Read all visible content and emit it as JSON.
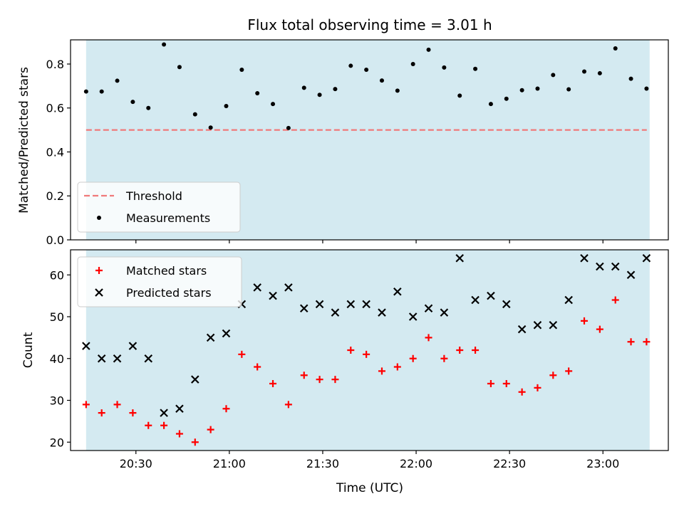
{
  "chart_data": [
    {
      "type": "scatter",
      "title": "Flux total observing time = 3.01 h",
      "xlabel": "",
      "ylabel": "Matched/Predicted stars",
      "xlim": [
        "20:09",
        "23:21"
      ],
      "ylim": [
        0,
        0.91
      ],
      "yticks": [
        0.0,
        0.2,
        0.4,
        0.6,
        0.8
      ],
      "ytick_labels": [
        "0.0",
        "0.2",
        "0.4",
        "0.6",
        "0.8"
      ],
      "shaded_span": [
        "20:14",
        "23:15"
      ],
      "shade_color": "#d4eaf1",
      "grid": false,
      "legend_position": "lower-left",
      "threshold": {
        "name": "Threshold",
        "value": 0.5,
        "style": "dashed",
        "color": "#f07a7a"
      },
      "series": [
        {
          "name": "Measurements",
          "marker": "dot",
          "color": "#000000",
          "points": [
            {
              "x": "20:14",
              "y": 0.675
            },
            {
              "x": "20:19",
              "y": 0.675
            },
            {
              "x": "20:24",
              "y": 0.724
            },
            {
              "x": "20:29",
              "y": 0.628
            },
            {
              "x": "20:34",
              "y": 0.6
            },
            {
              "x": "20:39",
              "y": 0.889
            },
            {
              "x": "20:44",
              "y": 0.786
            },
            {
              "x": "20:49",
              "y": 0.571
            },
            {
              "x": "20:54",
              "y": 0.511
            },
            {
              "x": "20:59",
              "y": 0.609
            },
            {
              "x": "21:04",
              "y": 0.774
            },
            {
              "x": "21:09",
              "y": 0.667
            },
            {
              "x": "21:14",
              "y": 0.618
            },
            {
              "x": "21:19",
              "y": 0.509
            },
            {
              "x": "21:24",
              "y": 0.692
            },
            {
              "x": "21:29",
              "y": 0.66
            },
            {
              "x": "21:34",
              "y": 0.686
            },
            {
              "x": "21:39",
              "y": 0.792
            },
            {
              "x": "21:44",
              "y": 0.774
            },
            {
              "x": "21:49",
              "y": 0.725
            },
            {
              "x": "21:54",
              "y": 0.679
            },
            {
              "x": "21:59",
              "y": 0.8
            },
            {
              "x": "22:04",
              "y": 0.865
            },
            {
              "x": "22:09",
              "y": 0.784
            },
            {
              "x": "22:14",
              "y": 0.656
            },
            {
              "x": "22:19",
              "y": 0.778
            },
            {
              "x": "22:24",
              "y": 0.618
            },
            {
              "x": "22:29",
              "y": 0.642
            },
            {
              "x": "22:34",
              "y": 0.681
            },
            {
              "x": "22:39",
              "y": 0.688
            },
            {
              "x": "22:44",
              "y": 0.75
            },
            {
              "x": "22:49",
              "y": 0.685
            },
            {
              "x": "22:54",
              "y": 0.766
            },
            {
              "x": "22:59",
              "y": 0.758
            },
            {
              "x": "23:04",
              "y": 0.871
            },
            {
              "x": "23:09",
              "y": 0.733
            },
            {
              "x": "23:14",
              "y": 0.688
            }
          ]
        }
      ]
    },
    {
      "type": "scatter",
      "title": "",
      "xlabel": "Time (UTC)",
      "ylabel": "Count",
      "xlim": [
        "20:09",
        "23:21"
      ],
      "xticks": [
        "20:30",
        "21:00",
        "21:30",
        "22:00",
        "22:30",
        "23:00"
      ],
      "ylim": [
        18,
        66
      ],
      "yticks": [
        20,
        30,
        40,
        50,
        60
      ],
      "shaded_span": [
        "20:14",
        "23:15"
      ],
      "shade_color": "#d4eaf1",
      "grid": false,
      "legend_position": "top-left",
      "series": [
        {
          "name": "Matched stars",
          "marker": "plus",
          "color": "#ff0000",
          "points": [
            {
              "x": "20:14",
              "y": 29
            },
            {
              "x": "20:19",
              "y": 27
            },
            {
              "x": "20:24",
              "y": 29
            },
            {
              "x": "20:29",
              "y": 27
            },
            {
              "x": "20:34",
              "y": 24
            },
            {
              "x": "20:39",
              "y": 24
            },
            {
              "x": "20:44",
              "y": 22
            },
            {
              "x": "20:49",
              "y": 20
            },
            {
              "x": "20:54",
              "y": 23
            },
            {
              "x": "20:59",
              "y": 28
            },
            {
              "x": "21:04",
              "y": 41
            },
            {
              "x": "21:09",
              "y": 38
            },
            {
              "x": "21:14",
              "y": 34
            },
            {
              "x": "21:19",
              "y": 29
            },
            {
              "x": "21:24",
              "y": 36
            },
            {
              "x": "21:29",
              "y": 35
            },
            {
              "x": "21:34",
              "y": 35
            },
            {
              "x": "21:39",
              "y": 42
            },
            {
              "x": "21:44",
              "y": 41
            },
            {
              "x": "21:49",
              "y": 37
            },
            {
              "x": "21:54",
              "y": 38
            },
            {
              "x": "21:59",
              "y": 40
            },
            {
              "x": "22:04",
              "y": 45
            },
            {
              "x": "22:09",
              "y": 40
            },
            {
              "x": "22:14",
              "y": 42
            },
            {
              "x": "22:19",
              "y": 42
            },
            {
              "x": "22:24",
              "y": 34
            },
            {
              "x": "22:29",
              "y": 34
            },
            {
              "x": "22:34",
              "y": 32
            },
            {
              "x": "22:39",
              "y": 33
            },
            {
              "x": "22:44",
              "y": 36
            },
            {
              "x": "22:49",
              "y": 37
            },
            {
              "x": "22:54",
              "y": 49
            },
            {
              "x": "22:59",
              "y": 47
            },
            {
              "x": "23:04",
              "y": 54
            },
            {
              "x": "23:09",
              "y": 44
            },
            {
              "x": "23:14",
              "y": 44
            }
          ]
        },
        {
          "name": "Predicted stars",
          "marker": "x",
          "color": "#000000",
          "points": [
            {
              "x": "20:14",
              "y": 43
            },
            {
              "x": "20:19",
              "y": 40
            },
            {
              "x": "20:24",
              "y": 40
            },
            {
              "x": "20:29",
              "y": 43
            },
            {
              "x": "20:34",
              "y": 40
            },
            {
              "x": "20:39",
              "y": 27
            },
            {
              "x": "20:44",
              "y": 28
            },
            {
              "x": "20:49",
              "y": 35
            },
            {
              "x": "20:54",
              "y": 45
            },
            {
              "x": "20:59",
              "y": 46
            },
            {
              "x": "21:04",
              "y": 53
            },
            {
              "x": "21:09",
              "y": 57
            },
            {
              "x": "21:14",
              "y": 55
            },
            {
              "x": "21:19",
              "y": 57
            },
            {
              "x": "21:24",
              "y": 52
            },
            {
              "x": "21:29",
              "y": 53
            },
            {
              "x": "21:34",
              "y": 51
            },
            {
              "x": "21:39",
              "y": 53
            },
            {
              "x": "21:44",
              "y": 53
            },
            {
              "x": "21:49",
              "y": 51
            },
            {
              "x": "21:54",
              "y": 56
            },
            {
              "x": "21:59",
              "y": 50
            },
            {
              "x": "22:04",
              "y": 52
            },
            {
              "x": "22:09",
              "y": 51
            },
            {
              "x": "22:14",
              "y": 64
            },
            {
              "x": "22:19",
              "y": 54
            },
            {
              "x": "22:24",
              "y": 55
            },
            {
              "x": "22:29",
              "y": 53
            },
            {
              "x": "22:34",
              "y": 47
            },
            {
              "x": "22:39",
              "y": 48
            },
            {
              "x": "22:44",
              "y": 48
            },
            {
              "x": "22:49",
              "y": 54
            },
            {
              "x": "22:54",
              "y": 64
            },
            {
              "x": "22:59",
              "y": 62
            },
            {
              "x": "23:04",
              "y": 62
            },
            {
              "x": "23:09",
              "y": 60
            },
            {
              "x": "23:14",
              "y": 64
            }
          ]
        }
      ]
    }
  ]
}
